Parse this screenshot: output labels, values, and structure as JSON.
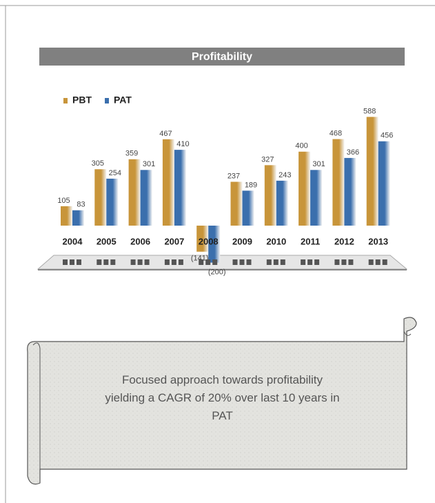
{
  "chart_data": {
    "type": "bar",
    "title": "Profitability",
    "categories": [
      "2004",
      "2005",
      "2006",
      "2007",
      "2008",
      "2009",
      "2010",
      "2011",
      "2012",
      "2013"
    ],
    "series": [
      {
        "name": "PBT",
        "color": "#c8953a",
        "values": [
          105,
          305,
          359,
          467,
          -141,
          237,
          327,
          400,
          468,
          588
        ],
        "value_labels": [
          "105",
          "305",
          "359",
          "467",
          "(141)",
          "237",
          "327",
          "400",
          "468",
          "588"
        ]
      },
      {
        "name": "PAT",
        "color": "#3b6fad",
        "values": [
          83,
          254,
          301,
          410,
          -200,
          189,
          243,
          301,
          366,
          456
        ],
        "value_labels": [
          "83",
          "254",
          "301",
          "410",
          "(200)",
          "189",
          "243",
          "301",
          "366",
          "456"
        ]
      }
    ]
  },
  "note": "Focused approach towards profitability yielding a CAGR of 20% over last 10 years in PAT"
}
